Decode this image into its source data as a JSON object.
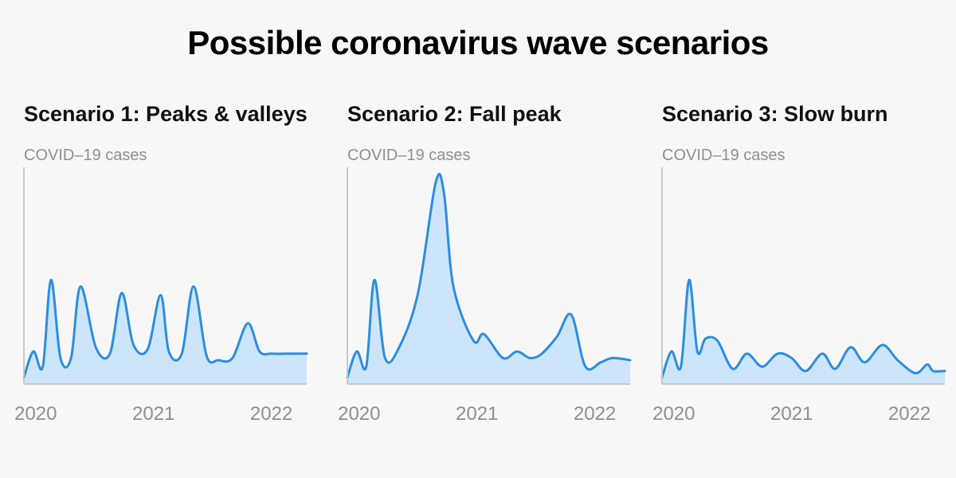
{
  "title": "Possible coronavirus wave scenarios",
  "colors": {
    "line": "#2b8de3",
    "fill": "#cde5fb",
    "axis": "#c8c8c8",
    "muted_text": "#8f8f8f",
    "background": "#f7f7f7"
  },
  "chart_data": [
    {
      "type": "area",
      "title": "Scenario 1: Peaks & valleys",
      "ylabel": "COVID–19 cases",
      "xlabel": "",
      "x_ticks": [
        {
          "label": "2020",
          "value": 2020.0
        },
        {
          "label": "2021",
          "value": 2021.0
        },
        {
          "label": "2022",
          "value": 2022.0
        }
      ],
      "xlim": [
        2019.9,
        2022.3
      ],
      "ylim": [
        0,
        100
      ],
      "grid": false,
      "series": [
        {
          "x": [
            2019.9,
            2019.98,
            2020.06,
            2020.13,
            2020.21,
            2020.3,
            2020.38,
            2020.51,
            2020.63,
            2020.73,
            2020.83,
            2020.95,
            2021.06,
            2021.13,
            2021.24,
            2021.34,
            2021.45,
            2021.55,
            2021.67,
            2021.8,
            2021.9,
            2022.0,
            2022.12,
            2022.21,
            2022.3
          ],
          "y": [
            3,
            15,
            8,
            48,
            12,
            12,
            45,
            17,
            14,
            42,
            18,
            16,
            41,
            15,
            14,
            45,
            13,
            11,
            12,
            28,
            15,
            14,
            14,
            14,
            14
          ]
        }
      ]
    },
    {
      "type": "area",
      "title": "Scenario 2: Fall peak",
      "ylabel": "COVID–19 cases",
      "xlabel": "",
      "x_ticks": [
        {
          "label": "2020",
          "value": 2020.0
        },
        {
          "label": "2021",
          "value": 2021.0
        },
        {
          "label": "2022",
          "value": 2022.0
        }
      ],
      "xlim": [
        2019.9,
        2022.3
      ],
      "ylim": [
        0,
        100
      ],
      "grid": false,
      "series": [
        {
          "x": [
            2019.9,
            2019.98,
            2020.06,
            2020.13,
            2020.22,
            2020.34,
            2020.5,
            2020.65,
            2020.72,
            2020.8,
            2020.97,
            2021.06,
            2021.22,
            2021.34,
            2021.45,
            2021.55,
            2021.68,
            2021.8,
            2021.92,
            2022.05,
            2022.15,
            2022.3
          ],
          "y": [
            3,
            15,
            8,
            48,
            12,
            17,
            42,
            93,
            88,
            45,
            20,
            23,
            12,
            15,
            12,
            14,
            22,
            32,
            8,
            10,
            12,
            11
          ]
        }
      ]
    },
    {
      "type": "area",
      "title": "Scenario 3: Slow burn",
      "ylabel": "COVID–19 cases",
      "xlabel": "",
      "x_ticks": [
        {
          "label": "2020",
          "value": 2020.0
        },
        {
          "label": "2021",
          "value": 2021.0
        },
        {
          "label": "2022",
          "value": 2022.0
        }
      ],
      "xlim": [
        2019.9,
        2022.3
      ],
      "ylim": [
        0,
        100
      ],
      "grid": false,
      "series": [
        {
          "x": [
            2019.9,
            2019.98,
            2020.06,
            2020.13,
            2020.2,
            2020.27,
            2020.37,
            2020.5,
            2020.62,
            2020.75,
            2020.88,
            2021.0,
            2021.12,
            2021.26,
            2021.37,
            2021.5,
            2021.62,
            2021.77,
            2021.9,
            2022.05,
            2022.15,
            2022.2,
            2022.3
          ],
          "y": [
            3,
            15,
            8,
            48,
            15,
            21,
            20,
            7,
            14,
            8,
            14,
            12,
            6,
            14,
            7,
            17,
            10,
            18,
            11,
            5,
            9,
            6,
            6
          ]
        }
      ]
    }
  ]
}
